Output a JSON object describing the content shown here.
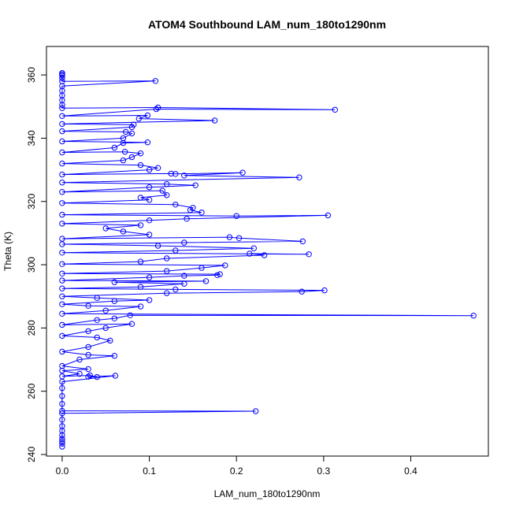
{
  "chart_data": {
    "type": "scatter",
    "title": "ATOM4 Southbound LAM_num_180to1290nm",
    "xlabel": "LAM_num_180to1290nm",
    "ylabel": "Theta (K)",
    "xlim": [
      -0.018,
      0.489
    ],
    "ylim": [
      239.5,
      369
    ],
    "xticks": [
      0.0,
      0.1,
      0.2,
      0.3,
      0.4
    ],
    "xtick_labels": [
      "0.0",
      "0.1",
      "0.2",
      "0.3",
      "0.4"
    ],
    "yticks": [
      240,
      260,
      280,
      300,
      320,
      340,
      360
    ],
    "ytick_labels": [
      "240",
      "260",
      "280",
      "300",
      "320",
      "340",
      "360"
    ],
    "grid": false,
    "legend": "none",
    "series_color": "#0000ff",
    "marker": "open-circle",
    "connected": true,
    "points": [
      [
        0,
        242.5
      ],
      [
        0,
        243.4
      ],
      [
        0,
        244.2
      ],
      [
        0,
        245.0
      ],
      [
        0,
        246.1
      ],
      [
        0,
        247.5
      ],
      [
        0,
        249.0
      ],
      [
        0,
        251.0
      ],
      [
        0,
        253.0
      ],
      [
        0.222,
        253.7
      ],
      [
        0,
        253.8
      ],
      [
        0,
        256.0
      ],
      [
        0,
        258.5
      ],
      [
        0,
        261.0
      ],
      [
        0,
        263.0
      ],
      [
        0.061,
        264.9
      ],
      [
        0.03,
        264.6
      ],
      [
        0.04,
        264.5
      ],
      [
        0.032,
        265.0
      ],
      [
        0,
        264.7
      ],
      [
        0.02,
        265.5
      ],
      [
        0,
        266.5
      ],
      [
        0.03,
        267.0
      ],
      [
        0,
        268.0
      ],
      [
        0.02,
        270.0
      ],
      [
        0.06,
        271.2
      ],
      [
        0.03,
        271.5
      ],
      [
        0,
        272.5
      ],
      [
        0.03,
        274.0
      ],
      [
        0.055,
        276.0
      ],
      [
        0.04,
        277.0
      ],
      [
        0,
        277.5
      ],
      [
        0.03,
        279.0
      ],
      [
        0.05,
        280.0
      ],
      [
        0.08,
        281.3
      ],
      [
        0,
        281.0
      ],
      [
        0.04,
        282.5
      ],
      [
        0.06,
        283.0
      ],
      [
        0.078,
        284.0
      ],
      [
        0.472,
        283.9
      ],
      [
        0,
        284.5
      ],
      [
        0.05,
        285.5
      ],
      [
        0.09,
        286.8
      ],
      [
        0.03,
        287.0
      ],
      [
        0,
        287.5
      ],
      [
        0.06,
        288.5
      ],
      [
        0.1,
        288.8
      ],
      [
        0.04,
        289.5
      ],
      [
        0,
        290.0
      ],
      [
        0.12,
        291.0
      ],
      [
        0.275,
        291.5
      ],
      [
        0.301,
        291.9
      ],
      [
        0.13,
        292.2
      ],
      [
        0,
        292.5
      ],
      [
        0.09,
        293.0
      ],
      [
        0.14,
        294.0
      ],
      [
        0.06,
        294.5
      ],
      [
        0.165,
        294.8
      ],
      [
        0,
        295.0
      ],
      [
        0.1,
        296.0
      ],
      [
        0.14,
        296.5
      ],
      [
        0.178,
        296.7
      ],
      [
        0.181,
        297.0
      ],
      [
        0,
        297.2
      ],
      [
        0.12,
        298.0
      ],
      [
        0.16,
        299.0
      ],
      [
        0.187,
        299.8
      ],
      [
        0,
        300.2
      ],
      [
        0.09,
        301.0
      ],
      [
        0.12,
        302.0
      ],
      [
        0.232,
        303.0
      ],
      [
        0.215,
        303.5
      ],
      [
        0.283,
        303.3
      ],
      [
        0,
        303.8
      ],
      [
        0.13,
        304.5
      ],
      [
        0.22,
        305.2
      ],
      [
        0.11,
        306.0
      ],
      [
        0,
        306.5
      ],
      [
        0.14,
        307.0
      ],
      [
        0.276,
        307.4
      ],
      [
        0.203,
        308.4
      ],
      [
        0.192,
        308.7
      ],
      [
        0,
        308.2
      ],
      [
        0.1,
        309.5
      ],
      [
        0.07,
        310.5
      ],
      [
        0.05,
        311.5
      ],
      [
        0.09,
        312.5
      ],
      [
        0,
        313.0
      ],
      [
        0.1,
        314.0
      ],
      [
        0.143,
        314.5
      ],
      [
        0.305,
        315.6
      ],
      [
        0.2,
        315.4
      ],
      [
        0,
        315.8
      ],
      [
        0.16,
        316.5
      ],
      [
        0.147,
        317.3
      ],
      [
        0.15,
        318.0
      ],
      [
        0.13,
        319.0
      ],
      [
        0,
        319.5
      ],
      [
        0.1,
        320.5
      ],
      [
        0.09,
        321.2
      ],
      [
        0.12,
        322.0
      ],
      [
        0.115,
        323.4
      ],
      [
        0,
        323.0
      ],
      [
        0.1,
        324.5
      ],
      [
        0.153,
        325.1
      ],
      [
        0.12,
        325.5
      ],
      [
        0,
        326.0
      ],
      [
        0.272,
        327.6
      ],
      [
        0.14,
        328.2
      ],
      [
        0.207,
        329.1
      ],
      [
        0.13,
        328.7
      ],
      [
        0.125,
        328.8
      ],
      [
        0,
        328.5
      ],
      [
        0.1,
        330.0
      ],
      [
        0.11,
        330.6
      ],
      [
        0.09,
        331.5
      ],
      [
        0,
        332.0
      ],
      [
        0.07,
        333.0
      ],
      [
        0.08,
        334.0
      ],
      [
        0.09,
        335.2
      ],
      [
        0.072,
        335.7
      ],
      [
        0,
        335.5
      ],
      [
        0.06,
        337.0
      ],
      [
        0.07,
        338.5
      ],
      [
        0.098,
        338.7
      ],
      [
        0,
        339.0
      ],
      [
        0.07,
        340.0
      ],
      [
        0.08,
        341.5
      ],
      [
        0.073,
        342.0
      ],
      [
        0,
        342.2
      ],
      [
        0.08,
        343.5
      ],
      [
        0.082,
        344.3
      ],
      [
        0,
        344.5
      ],
      [
        0.175,
        345.6
      ],
      [
        0.088,
        346.2
      ],
      [
        0.098,
        347.2
      ],
      [
        0,
        347.0
      ],
      [
        0.108,
        349.2
      ],
      [
        0.313,
        349.0
      ],
      [
        0.11,
        349.7
      ],
      [
        0,
        349.5
      ],
      [
        0,
        350.5
      ],
      [
        0,
        352.0
      ],
      [
        0,
        353.5
      ],
      [
        0,
        355.0
      ],
      [
        0,
        356.5
      ],
      [
        0.107,
        358.1
      ],
      [
        0,
        358.0
      ],
      [
        0,
        359.0
      ],
      [
        0,
        359.8
      ],
      [
        0,
        360.2
      ],
      [
        0,
        360.6
      ]
    ]
  }
}
